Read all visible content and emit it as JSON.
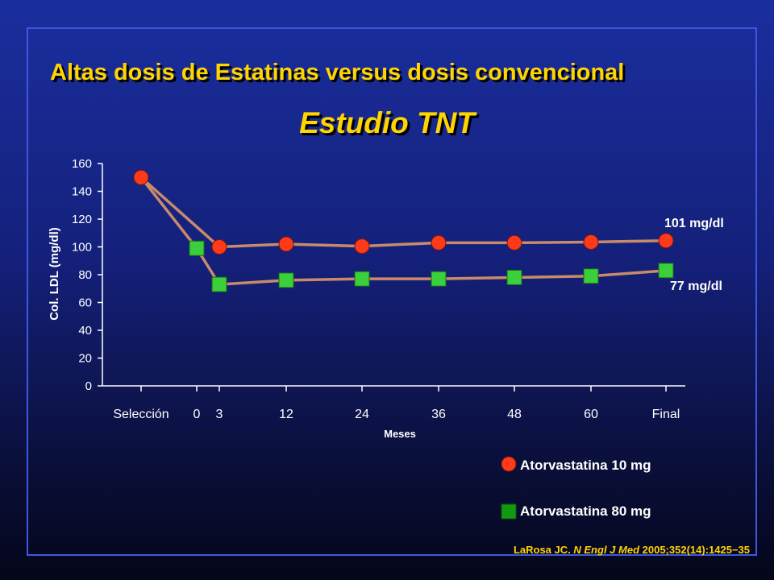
{
  "title": "Altas dosis de Estatinas versus dosis convencional",
  "subtitle": "Estudio TNT",
  "reference": {
    "author": "LaRosa JC.",
    "journal": "N Engl J Med",
    "details": "2005;352(14):1425−35"
  },
  "colors": {
    "title": "#ffd500",
    "series_10mg": "#ff3a1a",
    "series_80mg": "#3ccf3c",
    "line": "#c98a6a",
    "axis": "#ffffff"
  },
  "chart_data": {
    "type": "line",
    "xlabel": "Meses",
    "ylabel": "Col. LDL (mg/dl)",
    "ylim": [
      0,
      160
    ],
    "yticks": [
      0,
      20,
      40,
      60,
      80,
      100,
      120,
      140,
      160
    ],
    "categories": [
      "Selección",
      "0",
      "3",
      "12",
      "24",
      "36",
      "48",
      "60",
      "Final"
    ],
    "series": [
      {
        "name": "Atorvastatina 10 mg",
        "marker": "circle",
        "points": [
          {
            "x": "Selección",
            "y": 150
          },
          {
            "x": "3",
            "y": 100
          },
          {
            "x": "12",
            "y": 102
          },
          {
            "x": "24",
            "y": 100.5
          },
          {
            "x": "36",
            "y": 103
          },
          {
            "x": "48",
            "y": 103
          },
          {
            "x": "60",
            "y": 103.5
          },
          {
            "x": "Final",
            "y": 104.5
          }
        ],
        "end_label": "101 mg/dl"
      },
      {
        "name": "Atorvastatina 80 mg",
        "marker": "square",
        "points": [
          {
            "x": "Selección",
            "y": 150
          },
          {
            "x": "0",
            "y": 99
          },
          {
            "x": "3",
            "y": 73
          },
          {
            "x": "12",
            "y": 76
          },
          {
            "x": "24",
            "y": 77
          },
          {
            "x": "36",
            "y": 77
          },
          {
            "x": "48",
            "y": 78
          },
          {
            "x": "60",
            "y": 79
          },
          {
            "x": "Final",
            "y": 83
          }
        ],
        "end_label": "77 mg/dl"
      }
    ]
  }
}
